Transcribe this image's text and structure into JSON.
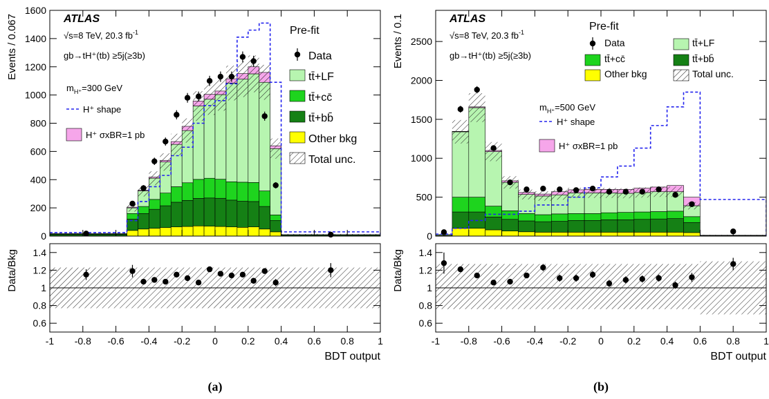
{
  "chart_data": [
    {
      "type": "bar",
      "panel_caption": "(a)",
      "experiment": "ATLAS",
      "energy_label": "√s=8 TeV, 20.3 fb",
      "energy_sup": "-1",
      "process_label": "gb→tH⁺(tb)  ≥5j(≥3b)",
      "fit_label": "Pre-fit",
      "mass_label": "m",
      "mass_sub": "H⁺",
      "mass_value": "=300 GeV",
      "signal_shape_label": "H⁺ shape",
      "signal_xs_label": "H⁺ σxBR=1 pb",
      "xlabel": "BDT output",
      "ylabel": "Events / 0.067",
      "ratio_ylabel": "Data/Bkg",
      "xlim": [
        -1,
        1
      ],
      "ylim": [
        0,
        1600
      ],
      "ratio_ylim": [
        0.5,
        1.5
      ],
      "x_ticks": [
        "-1",
        "-0.8",
        "-0.6",
        "-0.4",
        "-0.2",
        "0",
        "0.2",
        "0.4",
        "0.6",
        "0.8",
        "1"
      ],
      "y_ticks": [
        "0",
        "200",
        "400",
        "600",
        "800",
        "1000",
        "1200",
        "1400",
        "1600"
      ],
      "ratio_y_ticks": [
        "0.6",
        "0.8",
        "1",
        "1.2",
        "1.4"
      ],
      "bin_edges": [
        -1,
        -0.5333,
        -0.4667,
        -0.4,
        -0.3333,
        -0.2667,
        -0.2,
        -0.1333,
        -0.0667,
        0,
        0.0667,
        0.1333,
        0.2,
        0.2667,
        0.3333,
        0.4,
        1
      ],
      "series": [
        {
          "name": "Other bkg",
          "color": "#ffff00",
          "values": [
            2,
            40,
            50,
            55,
            60,
            65,
            68,
            72,
            70,
            68,
            65,
            62,
            65,
            50,
            30,
            2
          ]
        },
        {
          "name": "tt̄+bb̄",
          "color": "#158015",
          "values": [
            10,
            80,
            110,
            135,
            155,
            175,
            185,
            195,
            200,
            200,
            190,
            185,
            180,
            160,
            80,
            6
          ]
        },
        {
          "name": "tt̄+cc̄",
          "color": "#1ed41e",
          "values": [
            2,
            40,
            50,
            70,
            90,
            110,
            125,
            135,
            140,
            135,
            130,
            135,
            135,
            110,
            40,
            1
          ]
        },
        {
          "name": "tt̄+LF",
          "color": "#b7f5b0",
          "values": [
            4,
            40,
            110,
            150,
            220,
            300,
            370,
            520,
            560,
            600,
            700,
            730,
            770,
            770,
            470,
            1
          ]
        }
      ],
      "signal_stack": [
        0,
        5,
        5,
        8,
        12,
        20,
        30,
        35,
        35,
        25,
        30,
        40,
        50,
        70,
        20,
        0
      ],
      "signal_shape": [
        25,
        110,
        245,
        350,
        430,
        570,
        630,
        800,
        925,
        960,
        1080,
        1410,
        1460,
        1510,
        1090,
        30
      ],
      "data_x": [
        -0.78,
        -0.5,
        -0.433,
        -0.367,
        -0.3,
        -0.233,
        -0.167,
        -0.1,
        -0.033,
        0.033,
        0.1,
        0.167,
        0.233,
        0.3,
        0.367,
        0.7
      ],
      "data_y": [
        18,
        230,
        340,
        530,
        670,
        860,
        980,
        990,
        1100,
        1130,
        1130,
        1270,
        1240,
        850,
        360,
        10
      ],
      "ratio_y": [
        1.15,
        1.19,
        1.07,
        1.09,
        1.07,
        1.15,
        1.11,
        1.06,
        1.21,
        1.16,
        1.14,
        1.15,
        1.08,
        1.19,
        1.06,
        1.2
      ],
      "ratio_err": [
        0.06,
        0.07,
        0.03,
        0.03,
        0.03,
        0.03,
        0.03,
        0.03,
        0.03,
        0.03,
        0.03,
        0.03,
        0.03,
        0.03,
        0.04,
        0.08
      ],
      "ratio_band": [
        0.23,
        0.23
      ]
    },
    {
      "type": "bar",
      "panel_caption": "(b)",
      "experiment": "ATLAS",
      "energy_label": "√s=8 TeV, 20.3 fb",
      "energy_sup": "-1",
      "process_label": "gb→tH⁺(tb)  ≥5j(≥3b)",
      "fit_label": "Pre-fit",
      "mass_label": "m",
      "mass_sub": "H⁺",
      "mass_value": "=500 GeV",
      "signal_shape_label": "H⁺ shape",
      "signal_xs_label": "H⁺ σxBR=1 pb",
      "xlabel": "BDT output",
      "ylabel": "Events / 0.1",
      "ratio_ylabel": "Data/Bkg",
      "xlim": [
        -1,
        1
      ],
      "ylim": [
        0,
        2900
      ],
      "ratio_ylim": [
        0.5,
        1.5
      ],
      "x_ticks": [
        "-1",
        "-0.8",
        "-0.6",
        "-0.4",
        "-0.2",
        "0",
        "0.2",
        "0.4",
        "0.6",
        "0.8",
        "1"
      ],
      "y_ticks": [
        "0",
        "500",
        "1000",
        "1500",
        "2000",
        "2500"
      ],
      "ratio_y_ticks": [
        "0.6",
        "0.8",
        "1",
        "1.2",
        "1.4"
      ],
      "bin_edges": [
        -1,
        -0.9,
        -0.8,
        -0.7,
        -0.6,
        -0.5,
        -0.4,
        -0.3,
        -0.2,
        -0.1,
        0,
        0.1,
        0.2,
        0.3,
        0.4,
        0.5,
        0.6,
        1
      ],
      "series": [
        {
          "name": "Other bkg",
          "color": "#ffff00",
          "values": [
            2,
            100,
            100,
            80,
            65,
            55,
            50,
            50,
            50,
            50,
            50,
            50,
            50,
            50,
            50,
            45,
            2
          ]
        },
        {
          "name": "tt̄+bb̄",
          "color": "#158015",
          "values": [
            5,
            210,
            210,
            165,
            150,
            140,
            135,
            140,
            150,
            150,
            160,
            160,
            165,
            170,
            175,
            130,
            6
          ]
        },
        {
          "name": "tt̄+cc̄",
          "color": "#1ed41e",
          "values": [
            2,
            190,
            190,
            140,
            110,
            95,
            90,
            95,
            90,
            90,
            90,
            95,
            95,
            95,
            95,
            75,
            1
          ]
        },
        {
          "name": "tt̄+LF",
          "color": "#b7f5b0",
          "values": [
            11,
            840,
            1150,
            700,
            365,
            245,
            240,
            245,
            265,
            265,
            255,
            245,
            250,
            255,
            250,
            140,
            2
          ]
        }
      ],
      "signal_stack": [
        0,
        5,
        10,
        15,
        20,
        25,
        25,
        40,
        40,
        45,
        45,
        50,
        55,
        60,
        80,
        110,
        0
      ],
      "signal_shape": [
        25,
        100,
        200,
        280,
        280,
        320,
        400,
        400,
        500,
        620,
        760,
        900,
        1130,
        1420,
        1660,
        1850,
        470
      ],
      "data_x": [
        -0.95,
        -0.85,
        -0.75,
        -0.65,
        -0.55,
        -0.45,
        -0.35,
        -0.25,
        -0.15,
        -0.05,
        0.05,
        0.15,
        0.25,
        0.35,
        0.45,
        0.55,
        0.8
      ],
      "data_y": [
        50,
        1630,
        1880,
        1130,
        690,
        600,
        610,
        600,
        590,
        610,
        570,
        570,
        570,
        600,
        530,
        410,
        60
      ],
      "ratio_y": [
        1.28,
        1.21,
        1.14,
        1.06,
        1.07,
        1.14,
        1.23,
        1.11,
        1.11,
        1.15,
        1.05,
        1.09,
        1.1,
        1.11,
        1.03,
        1.12,
        1.27
      ],
      "ratio_err": [
        0.12,
        0.03,
        0.03,
        0.03,
        0.03,
        0.03,
        0.04,
        0.04,
        0.04,
        0.04,
        0.04,
        0.04,
        0.04,
        0.04,
        0.04,
        0.05,
        0.07
      ],
      "ratio_band": [
        0.24,
        0.27
      ]
    }
  ]
}
